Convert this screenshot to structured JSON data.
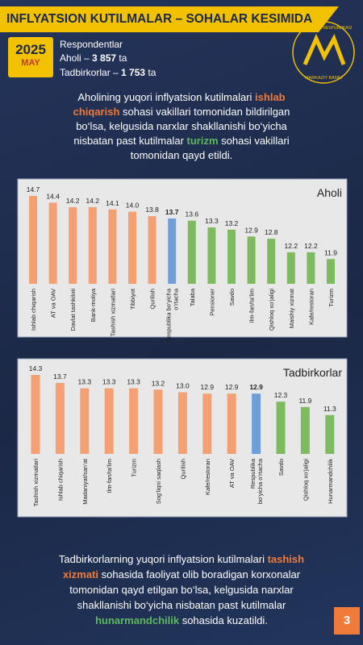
{
  "header": {
    "title": "INFLYATSION KUTILMALAR – SOHALAR KESIMIDA",
    "year": "2025",
    "month": "MAY",
    "respondents_label": "Respondentlar",
    "respondents": [
      [
        {
          "text": "Aholi – "
        },
        {
          "text": "3 857",
          "bold": true
        },
        {
          "text": " ta"
        }
      ],
      [
        {
          "text": "Tadbirkorlar – "
        },
        {
          "text": "1 753",
          "bold": true
        },
        {
          "text": " ta"
        }
      ]
    ],
    "logo": {
      "top": "O‘ZBEKISTON RESPUBLIKASI",
      "bottom": "MARKAZIY BANKI"
    }
  },
  "intro": [
    {
      "text": "Aholining yuqori inflyatsion kutilmalari "
    },
    {
      "text": "ishlab chiqarish",
      "bold": true,
      "color": "#f07a3a"
    },
    {
      "text": " sohasi vakillari tomonidan bildirilgan bo‘lsa, kelgusida narxlar shakllanishi bo‘yicha nisbatan past kutilmalar "
    },
    {
      "text": "turizm",
      "bold": true,
      "color": "#5cb85c"
    },
    {
      "text": " sohasi vakillari tomonidan qayd etildi."
    }
  ],
  "conclusion": [
    {
      "text": "Tadbirkorlarning yuqori inflyatsion kutilmalari "
    },
    {
      "text": "tashish xizmati",
      "bold": true,
      "color": "#f07a3a"
    },
    {
      "text": " sohasida faoliyat olib boradigan korxonalar tomonidan qayd etilgan bo‘lsa, kelgusida narxlar shakllanishi bo‘yicha nisbatan past kutilmalar "
    },
    {
      "text": "hunarmandchilik",
      "bold": true,
      "color": "#5cb85c"
    },
    {
      "text": " sohasida kuzatildi."
    }
  ],
  "page_number": "3",
  "chart_data": [
    {
      "type": "bar",
      "title": "Aholi",
      "categories": [
        "Ishlab chiqarish",
        "AT va OAV",
        "Davlat tashkiloti",
        "Bank-moliya",
        "Tashish xizmatlari",
        "Tibbiyot",
        "Qurilish",
        "Respublika bo‘yicha\no‘rtacha",
        "Talaba",
        "Pensioner",
        "Savdo",
        "Ilm-fan/ta’lim",
        "Qishloq xo‘jaligi",
        "Maishiy xizmat",
        "Kafe/restoran",
        "Turizm"
      ],
      "values": [
        14.7,
        14.4,
        14.2,
        14.2,
        14.1,
        14.0,
        13.8,
        13.7,
        13.6,
        13.3,
        13.2,
        12.9,
        12.8,
        12.2,
        12.2,
        11.9
      ],
      "value_labels": [
        "14.7",
        "14.4",
        "14.2",
        "14.2",
        "14.1",
        "14.0",
        "13.8",
        "13.7",
        "13.6",
        "13.3",
        "13.2",
        "12.9",
        "12.8",
        "12.2",
        "12.2",
        "11.9"
      ],
      "colors": [
        "#f4a072",
        "#f4a072",
        "#f4a072",
        "#f4a072",
        "#f4a072",
        "#f4a072",
        "#f4a072",
        "#6f9fd8",
        "#7dbb5e",
        "#7dbb5e",
        "#7dbb5e",
        "#7dbb5e",
        "#7dbb5e",
        "#7dbb5e",
        "#7dbb5e",
        "#7dbb5e"
      ],
      "ylim": [
        10.8,
        15.2
      ]
    },
    {
      "type": "bar",
      "title": "Tadbirkorlar",
      "categories": [
        "Tashish xizmatlari",
        "Ishlab chiqarish",
        "Madaniyat/san’at",
        "Ilm-fan/ta’lim",
        "Turizm",
        "Sog‘liqni saqlash",
        "Qurilish",
        "Kafe/restoran",
        "AT va OAV",
        "Respublika\nbo‘yicha o‘rtacha",
        "Savdo",
        "Qishloq xo‘jaligi",
        "Hunarmandchilik"
      ],
      "values": [
        14.3,
        13.7,
        13.3,
        13.3,
        13.3,
        13.2,
        13.0,
        12.9,
        12.9,
        12.9,
        12.3,
        11.9,
        11.3
      ],
      "value_labels": [
        "14.3",
        "13.7",
        "13.3",
        "13.3",
        "13.3",
        "13.2",
        "13.0",
        "12.9",
        "12.9",
        "12.9",
        "12.3",
        "11.9",
        "11.3"
      ],
      "colors": [
        "#f4a072",
        "#f4a072",
        "#f4a072",
        "#f4a072",
        "#f4a072",
        "#f4a072",
        "#f4a072",
        "#f4a072",
        "#f4a072",
        "#6f9fd8",
        "#7dbb5e",
        "#7dbb5e",
        "#7dbb5e"
      ],
      "ylim": [
        8.4,
        14.6
      ]
    }
  ]
}
